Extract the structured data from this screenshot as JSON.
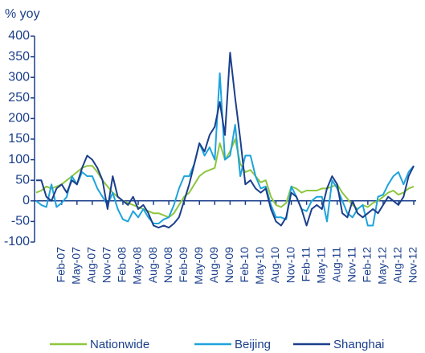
{
  "chart_data": {
    "type": "line",
    "ylabel": "% yoy",
    "categories": [
      null,
      null,
      null,
      null,
      null,
      "Feb-07",
      null,
      null,
      "May-07",
      null,
      null,
      "Aug-07",
      null,
      null,
      "Nov-07",
      null,
      null,
      "Feb-08",
      null,
      null,
      "May-08",
      null,
      null,
      "Aug-08",
      null,
      null,
      "Nov-08",
      null,
      null,
      "Feb-09",
      null,
      null,
      "May-09",
      null,
      null,
      "Aug-09",
      null,
      null,
      "Nov-09",
      null,
      null,
      "Feb-10",
      null,
      null,
      "May-10",
      null,
      null,
      "Aug-10",
      null,
      null,
      "Nov-10",
      null,
      null,
      "Feb-11",
      null,
      null,
      "May-11",
      null,
      null,
      "Aug-11",
      null,
      null,
      "Nov-11",
      null,
      null,
      "Feb-12",
      null,
      null,
      "May-12",
      null,
      null,
      "Aug-12",
      null,
      null,
      "Nov-12"
    ],
    "series": [
      {
        "name": "Nationwide",
        "color": "#8dc63f",
        "values": [
          20,
          25,
          35,
          30,
          35,
          40,
          50,
          60,
          70,
          80,
          85,
          85,
          70,
          50,
          35,
          20,
          10,
          0,
          -5,
          -10,
          -15,
          -20,
          -25,
          -30,
          -30,
          -35,
          -40,
          -30,
          -10,
          10,
          20,
          40,
          60,
          70,
          75,
          80,
          140,
          100,
          120,
          150,
          90,
          70,
          75,
          60,
          45,
          50,
          10,
          -10,
          -15,
          -5,
          35,
          30,
          20,
          25,
          25,
          25,
          30,
          30,
          35,
          40,
          20,
          5,
          -10,
          -20,
          -10,
          -15,
          -5,
          0,
          10,
          20,
          25,
          15,
          20,
          30,
          35
        ]
      },
      {
        "name": "Beijing",
        "color": "#1ea3dc",
        "values": [
          0,
          -10,
          -15,
          40,
          -15,
          -5,
          10,
          60,
          40,
          70,
          60,
          60,
          30,
          10,
          -10,
          20,
          -20,
          -45,
          -50,
          -25,
          -40,
          -20,
          -40,
          -55,
          -55,
          -45,
          -40,
          -10,
          30,
          60,
          60,
          90,
          140,
          110,
          130,
          100,
          310,
          100,
          110,
          185,
          60,
          110,
          110,
          60,
          30,
          35,
          -10,
          -40,
          -40,
          -45,
          35,
          10,
          -20,
          -25,
          0,
          10,
          10,
          -50,
          50,
          30,
          0,
          -30,
          -40,
          -20,
          -10,
          -60,
          -60,
          10,
          15,
          40,
          60,
          70,
          40,
          70,
          85
        ]
      },
      {
        "name": "Shanghai",
        "color": "#1b3f8b",
        "values": [
          50,
          50,
          10,
          0,
          30,
          40,
          20,
          50,
          40,
          80,
          110,
          100,
          80,
          50,
          -20,
          60,
          10,
          0,
          -10,
          10,
          -20,
          -10,
          -30,
          -60,
          -65,
          -60,
          -65,
          -55,
          -40,
          0,
          40,
          90,
          140,
          120,
          160,
          180,
          240,
          160,
          360,
          250,
          150,
          40,
          50,
          30,
          20,
          30,
          -20,
          -50,
          -60,
          -40,
          20,
          10,
          -20,
          -60,
          -20,
          -10,
          -20,
          30,
          60,
          40,
          -30,
          -40,
          0,
          -30,
          -40,
          -30,
          -20,
          -30,
          -10,
          10,
          0,
          -10,
          10,
          60,
          85
        ]
      }
    ],
    "ylim": [
      -100,
      400
    ],
    "yticks": [
      -100,
      -50,
      0,
      50,
      100,
      150,
      200,
      250,
      300,
      350,
      400
    ]
  }
}
